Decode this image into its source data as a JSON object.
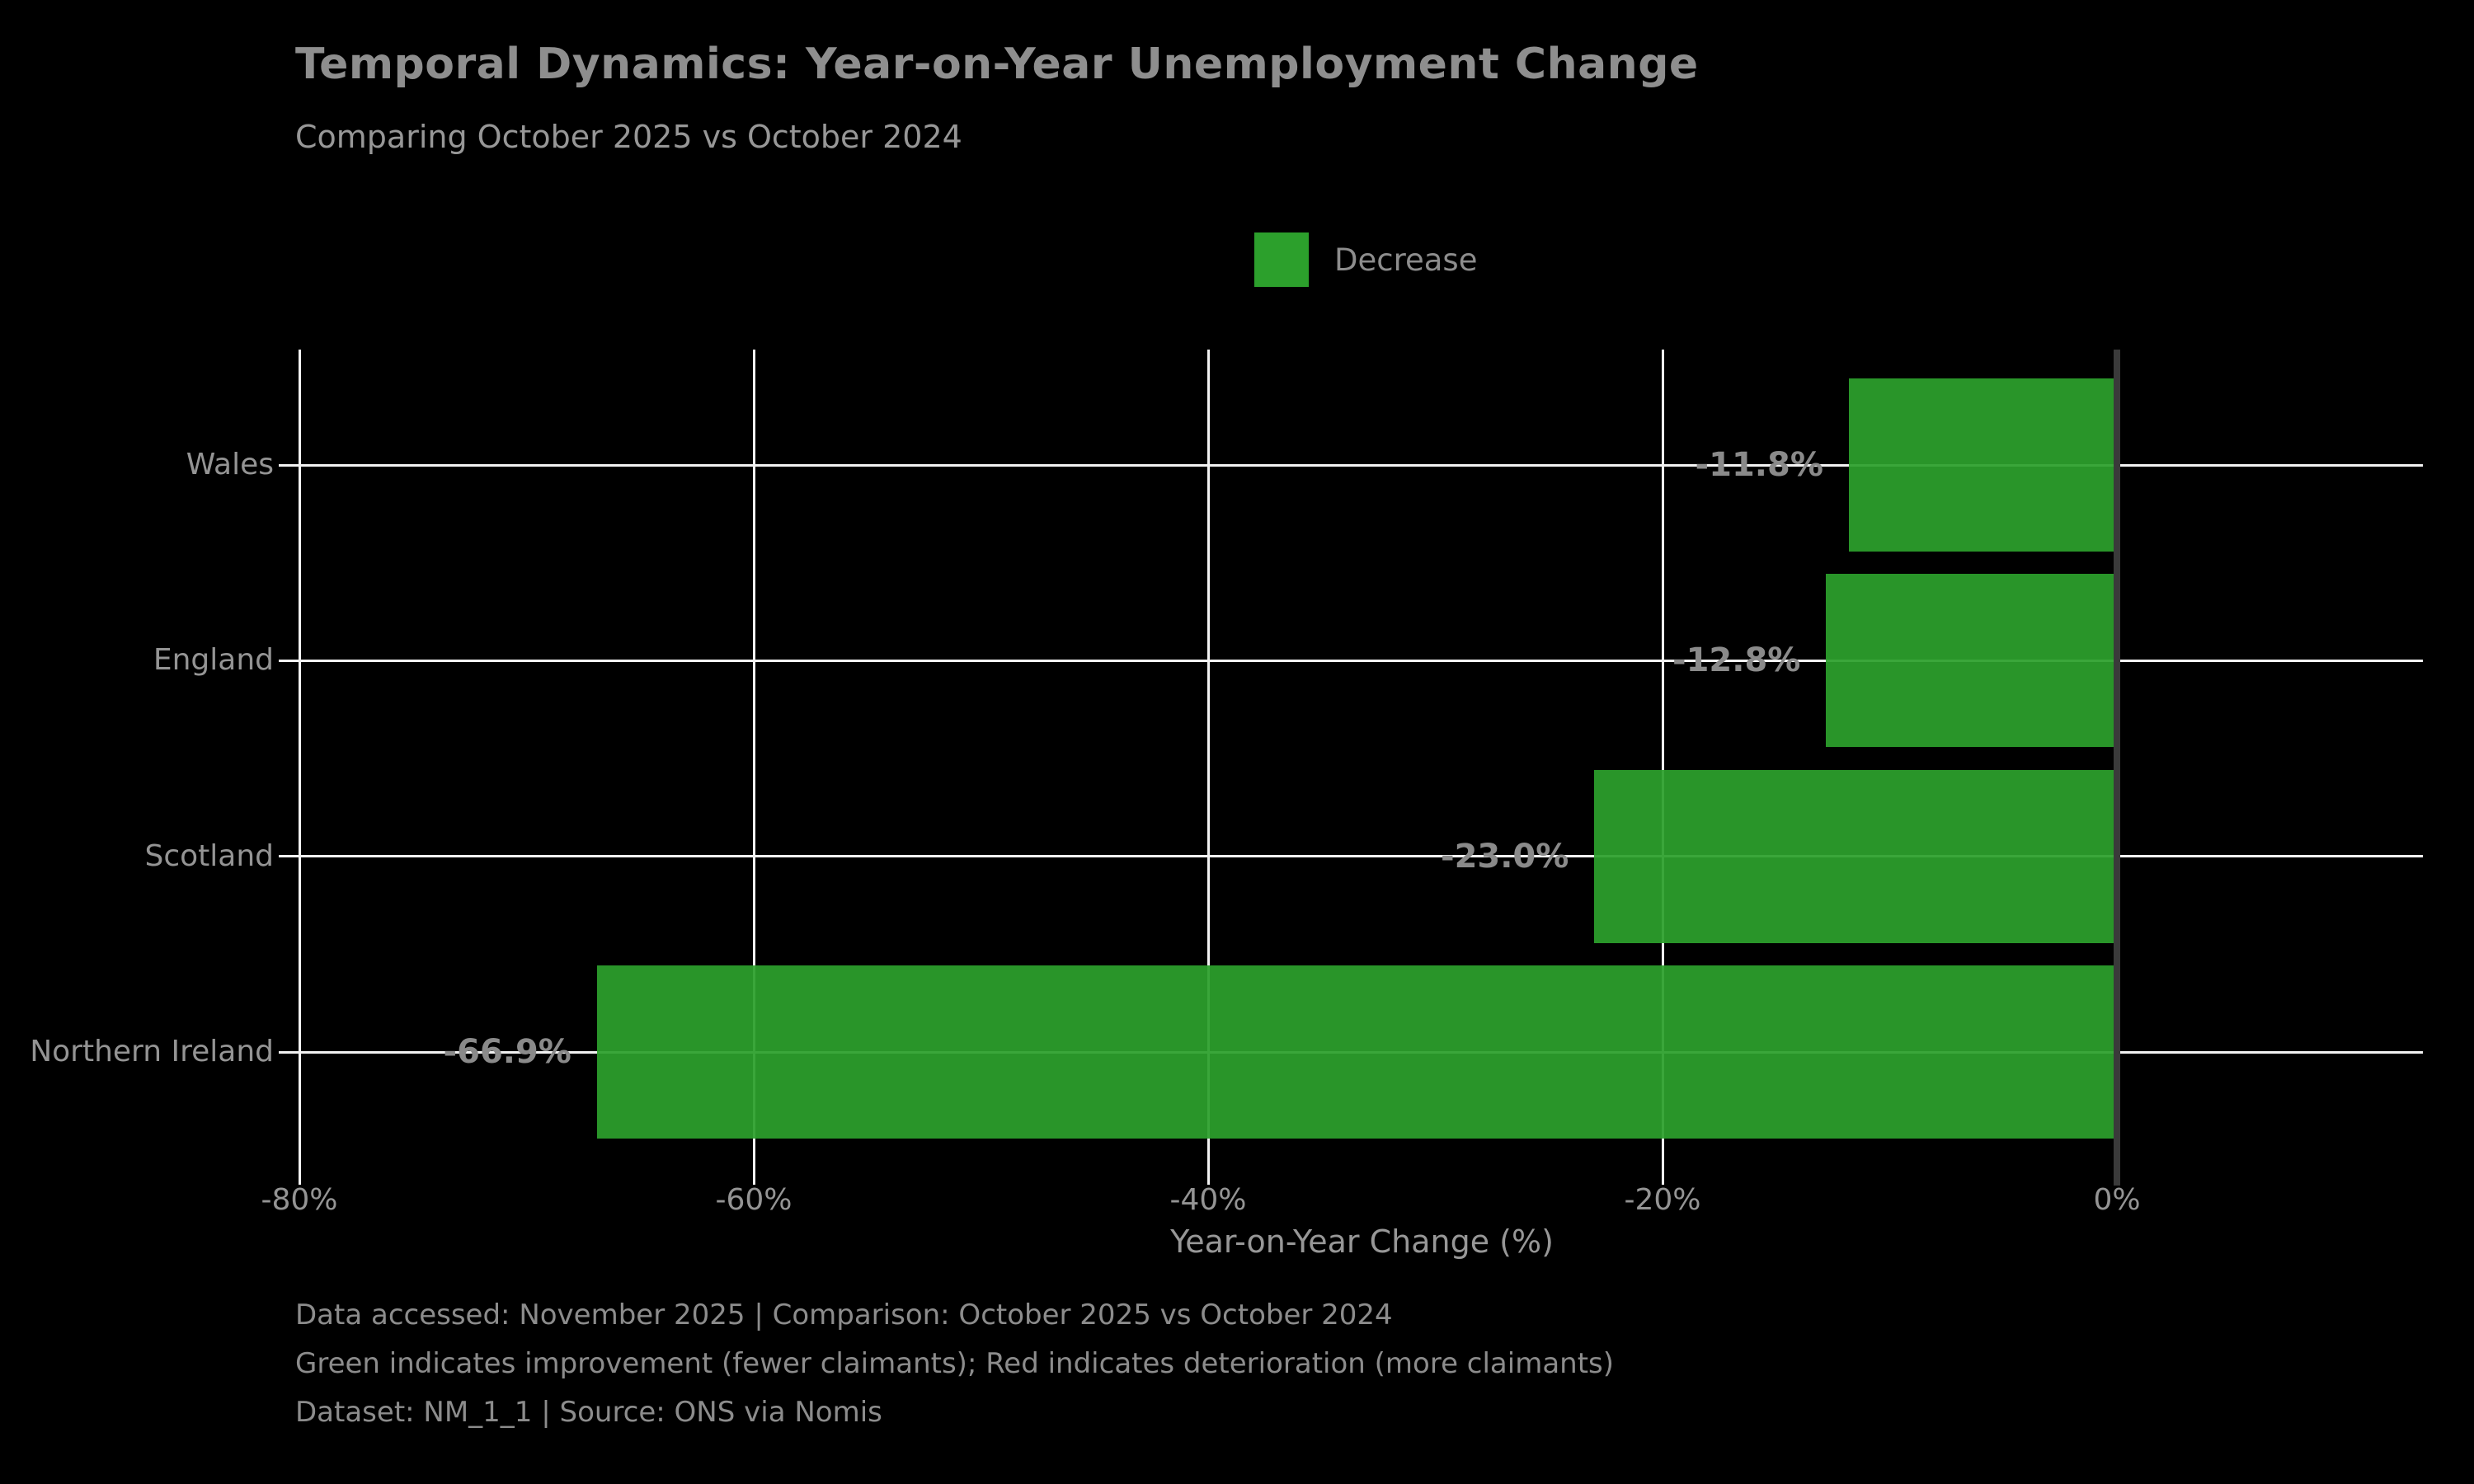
{
  "page": {
    "background": "#000000"
  },
  "chart_data": {
    "type": "bar",
    "orientation": "horizontal",
    "title": "Temporal Dynamics: Year-on-Year Unemployment Change",
    "subtitle": "Comparing October 2025 vs October 2024",
    "xlabel": "Year-on-Year Change (%)",
    "categories": [
      "Wales",
      "England",
      "Scotland",
      "Northern Ireland"
    ],
    "values": [
      -11.8,
      -12.8,
      -23.0,
      -66.9
    ],
    "value_labels": [
      "-11.8%",
      "-12.8%",
      "-23.0%",
      "-66.9%"
    ],
    "x_ticks": [
      -80,
      -60,
      -40,
      -20,
      0
    ],
    "x_tick_labels": [
      "-80%",
      "-60%",
      "-40%",
      "-20%",
      "0%"
    ],
    "xlim": [
      -80,
      13.6
    ],
    "grid": true,
    "legend": {
      "position": "top-center",
      "entries": [
        {
          "label": "Decrease",
          "color": "#2ca02c"
        }
      ]
    },
    "colors": {
      "bar_decrease": "#2ca02c",
      "gridline": "#f2f2f2",
      "zero_line": "#3a3a3a",
      "title_text": "#8e8e8e",
      "subtitle_text": "#979797",
      "tick_text": "#949494",
      "value_label_text": "#8a8a8a",
      "footer_text": "#8c8c8c",
      "background": "#000000"
    }
  },
  "footnotes": [
    "Data accessed: November 2025 | Comparison: October 2025 vs October 2024",
    "Green indicates improvement (fewer claimants); Red indicates deterioration (more claimants)",
    "Dataset: NM_1_1 | Source: ONS via Nomis"
  ]
}
